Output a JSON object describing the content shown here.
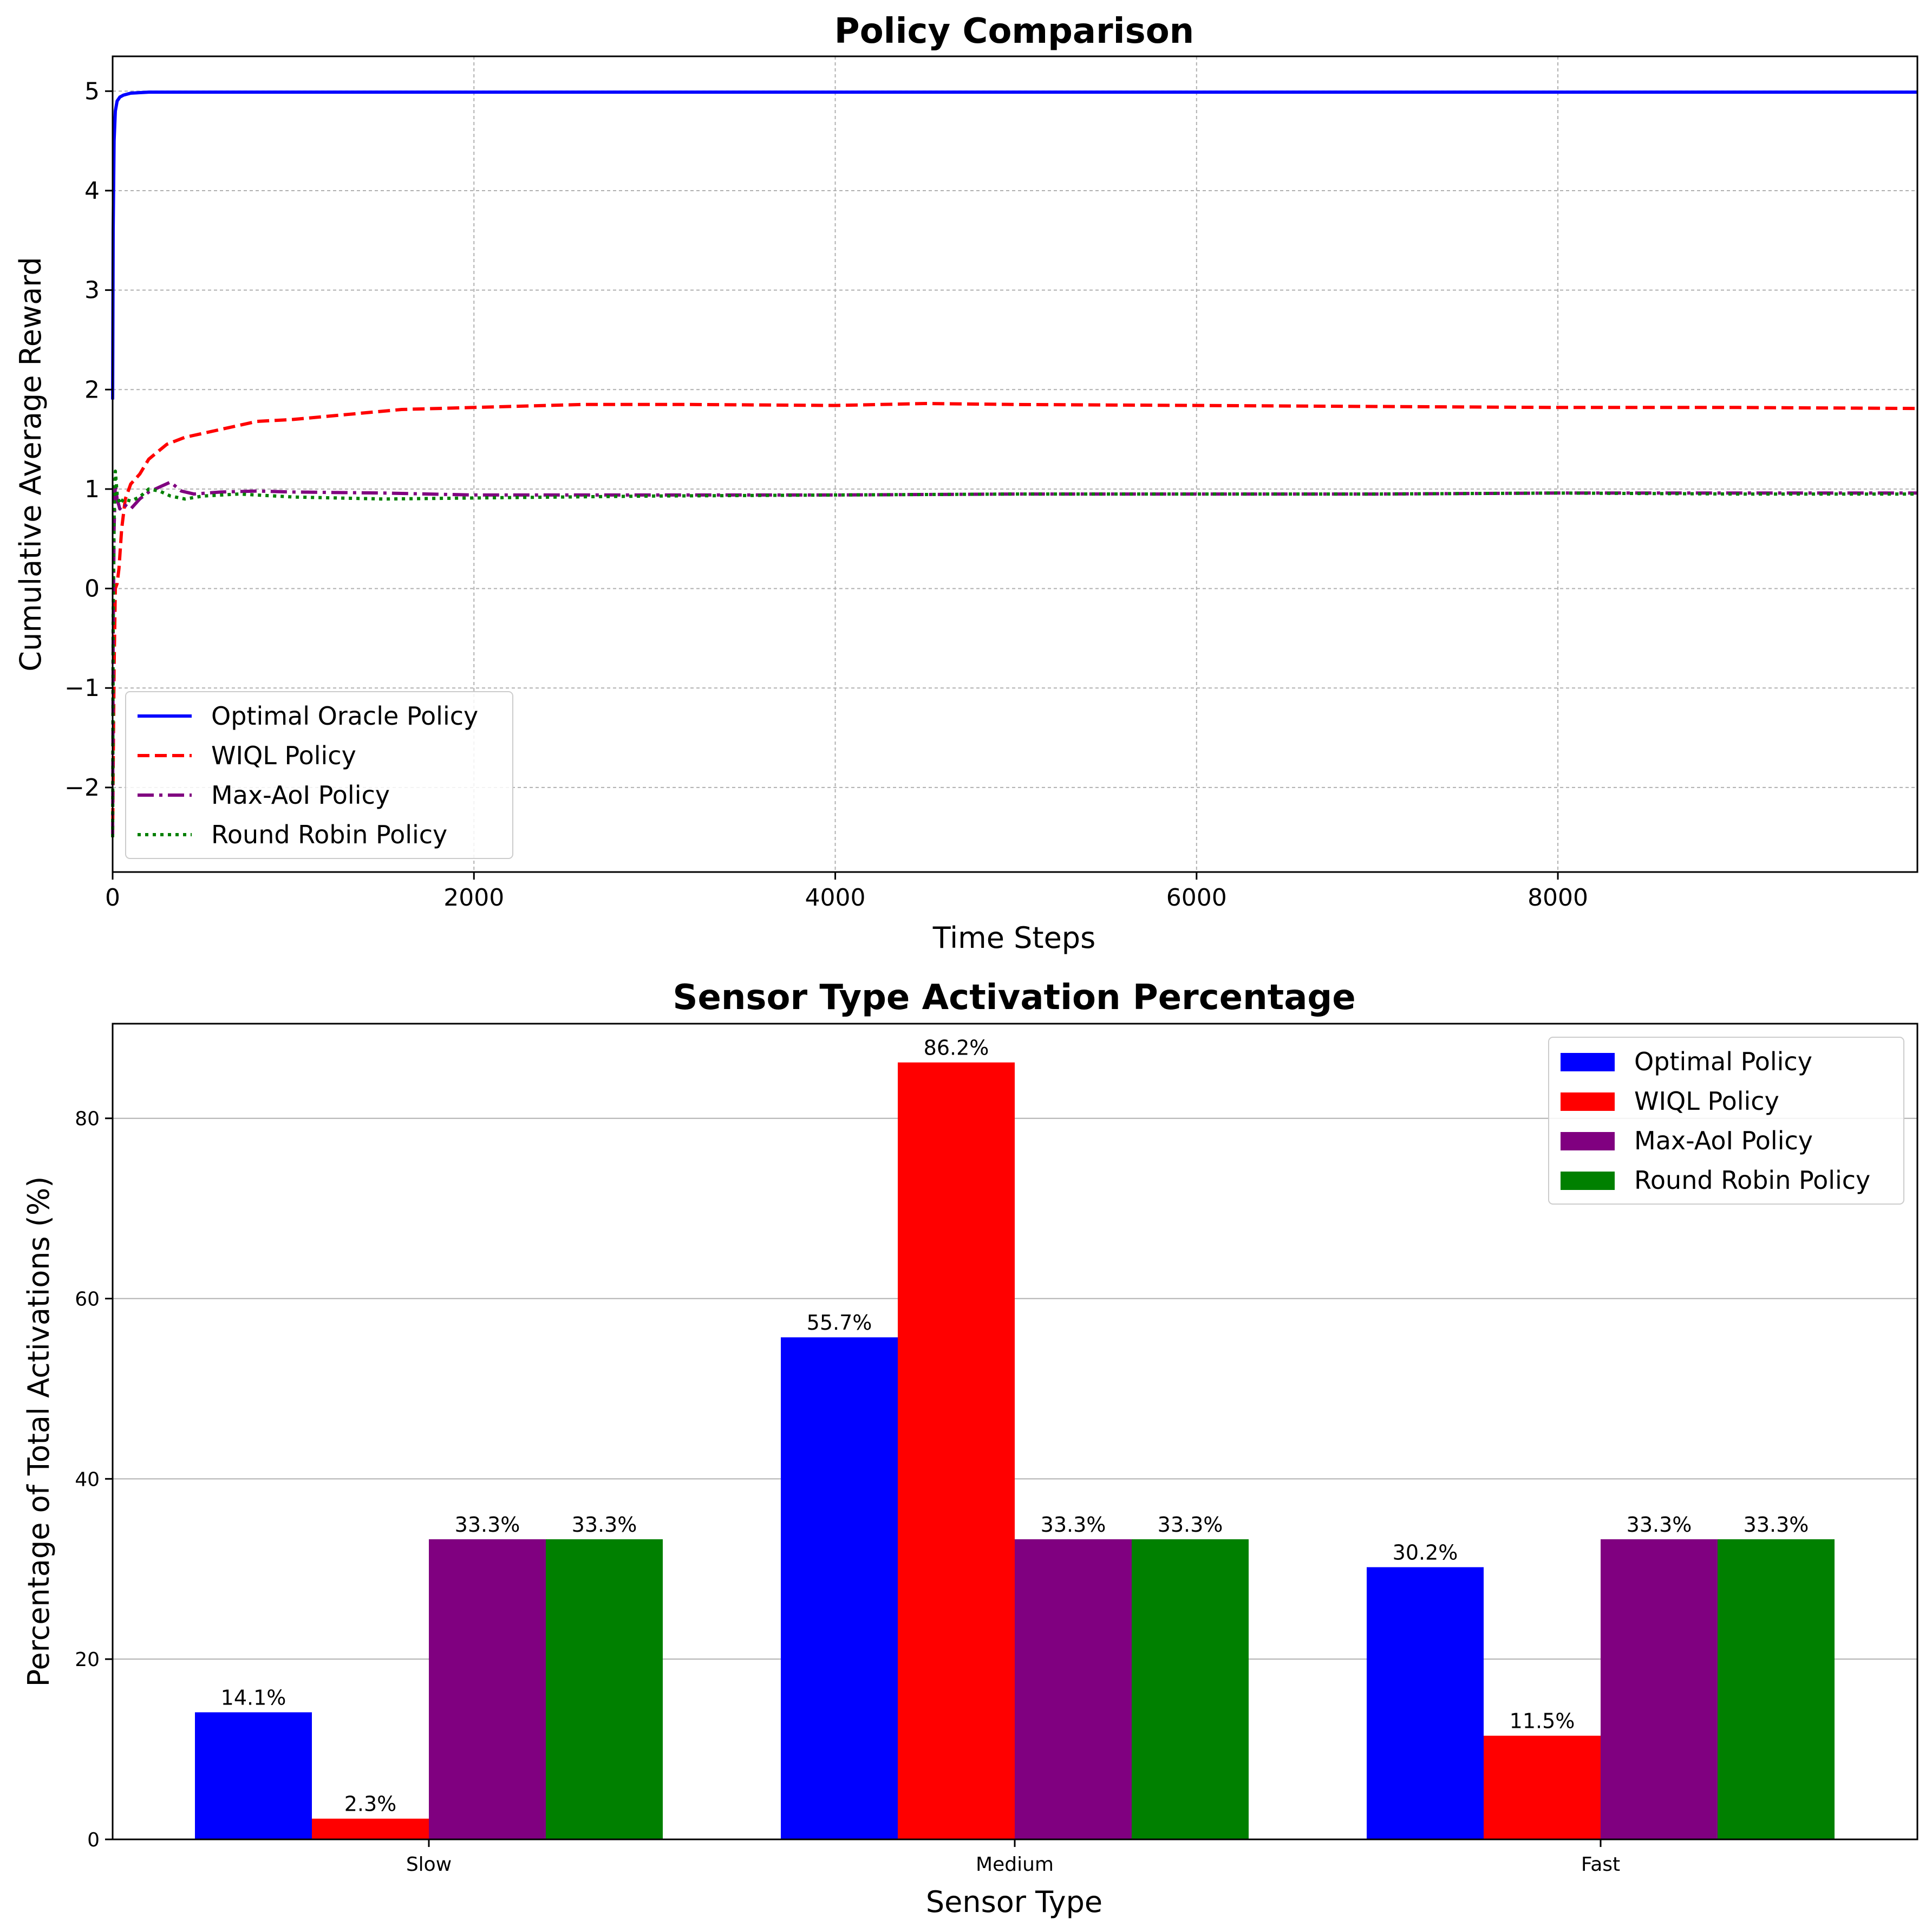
{
  "chart_data": [
    {
      "type": "line",
      "title": "Policy Comparison",
      "xlabel": "Time Steps",
      "ylabel": "Cumulative Average Reward",
      "xlim": [
        0,
        9990
      ],
      "ylim": [
        -2.85,
        5.35
      ],
      "xticks": [
        "0",
        "2000",
        "4000",
        "6000",
        "8000"
      ],
      "yticks": [
        "−2",
        "−1",
        "0",
        "1",
        "2",
        "3",
        "4",
        "5"
      ],
      "grid": true,
      "legend_position": "lower-left",
      "series": [
        {
          "name": "Optimal Oracle Policy",
          "color": "#0000ff",
          "style": "solid",
          "x": [
            0,
            3,
            8,
            15,
            25,
            40,
            60,
            100,
            200,
            400,
            1000,
            2000,
            4000,
            6000,
            8000,
            9990
          ],
          "y": [
            1.9,
            3.6,
            4.5,
            4.8,
            4.9,
            4.94,
            4.96,
            4.98,
            4.99,
            4.99,
            4.99,
            4.99,
            4.99,
            4.99,
            4.99,
            4.99
          ]
        },
        {
          "name": "WIQL Policy",
          "color": "#ff0000",
          "style": "dashed",
          "x": [
            0,
            3,
            8,
            15,
            25,
            35,
            50,
            70,
            100,
            150,
            200,
            300,
            400,
            600,
            800,
            1000,
            1300,
            1600,
            2000,
            2600,
            3200,
            4000,
            4500,
            5000,
            6000,
            7000,
            8000,
            9000,
            9990
          ],
          "y": [
            -2.5,
            -1.8,
            -0.8,
            0.0,
            0.05,
            0.2,
            0.6,
            0.9,
            1.05,
            1.15,
            1.3,
            1.45,
            1.52,
            1.6,
            1.68,
            1.7,
            1.75,
            1.8,
            1.82,
            1.85,
            1.85,
            1.84,
            1.86,
            1.85,
            1.84,
            1.83,
            1.82,
            1.82,
            1.81
          ]
        },
        {
          "name": "Max-AoI Policy",
          "color": "#800080",
          "style": "dashdot",
          "x": [
            0,
            3,
            8,
            15,
            25,
            40,
            60,
            100,
            150,
            200,
            260,
            320,
            380,
            450,
            600,
            800,
            1000,
            1500,
            2000,
            3000,
            4000,
            5000,
            6000,
            7000,
            8000,
            9000,
            9990
          ],
          "y": [
            -2.5,
            -0.5,
            0.6,
            1.05,
            0.9,
            0.8,
            0.85,
            0.8,
            0.9,
            0.97,
            1.02,
            1.07,
            0.98,
            0.95,
            0.97,
            0.98,
            0.97,
            0.96,
            0.94,
            0.94,
            0.94,
            0.95,
            0.95,
            0.95,
            0.96,
            0.96,
            0.96
          ]
        },
        {
          "name": "Round Robin Policy",
          "color": "#008000",
          "style": "dotted",
          "x": [
            0,
            3,
            8,
            15,
            25,
            40,
            60,
            100,
            150,
            200,
            260,
            320,
            400,
            500,
            700,
            1000,
            1500,
            2000,
            3000,
            4000,
            5000,
            6000,
            7000,
            8000,
            9000,
            9990
          ],
          "y": [
            -2.5,
            -0.3,
            0.7,
            1.18,
            0.95,
            0.85,
            0.9,
            0.88,
            0.92,
            1.0,
            0.98,
            0.93,
            0.9,
            0.93,
            0.95,
            0.92,
            0.9,
            0.91,
            0.93,
            0.94,
            0.95,
            0.95,
            0.95,
            0.96,
            0.95,
            0.95
          ]
        }
      ]
    },
    {
      "type": "bar",
      "title": "Sensor Type Activation Percentage",
      "xlabel": "Sensor Type",
      "ylabel": "Percentage of Total Activations (%)",
      "categories": [
        "Slow",
        "Medium",
        "Fast"
      ],
      "ylim": [
        0,
        90.5
      ],
      "yticks": [
        "0",
        "20",
        "40",
        "60",
        "80"
      ],
      "grid": "y",
      "legend_position": "top-right",
      "series": [
        {
          "name": "Optimal Policy",
          "color": "#0000ff",
          "values": [
            14.1,
            55.7,
            30.2
          ],
          "labels": [
            "14.1%",
            "55.7%",
            "30.2%"
          ]
        },
        {
          "name": "WIQL Policy",
          "color": "#ff0000",
          "values": [
            2.3,
            86.2,
            11.5
          ],
          "labels": [
            "2.3%",
            "86.2%",
            "11.5%"
          ]
        },
        {
          "name": "Max-AoI Policy",
          "color": "#800080",
          "values": [
            33.3,
            33.3,
            33.3
          ],
          "labels": [
            "33.3%",
            "33.3%",
            "33.3%"
          ]
        },
        {
          "name": "Round Robin Policy",
          "color": "#008000",
          "values": [
            33.3,
            33.3,
            33.3
          ],
          "labels": [
            "33.3%",
            "33.3%",
            "33.3%"
          ]
        }
      ]
    }
  ]
}
